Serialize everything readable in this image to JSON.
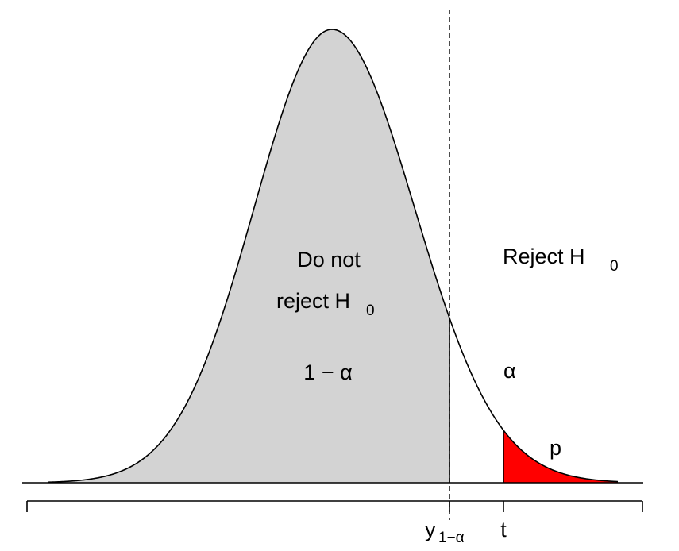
{
  "diagram": {
    "type": "one-sided hypothesis test density",
    "labels": {
      "accept_line1": "Do not",
      "accept_line2": "reject H",
      "accept_sub": "0",
      "reject": "Reject H",
      "reject_sub": "0",
      "one_minus_alpha": "1 − α",
      "alpha": "α",
      "p": "p",
      "critical_base": "y",
      "critical_sub": "1−α",
      "t": "t"
    },
    "colors": {
      "accept_fill": "#d3d3d3",
      "p_fill": "#ff0000",
      "p_label": "#ff0000",
      "curve": "#000000"
    }
  }
}
